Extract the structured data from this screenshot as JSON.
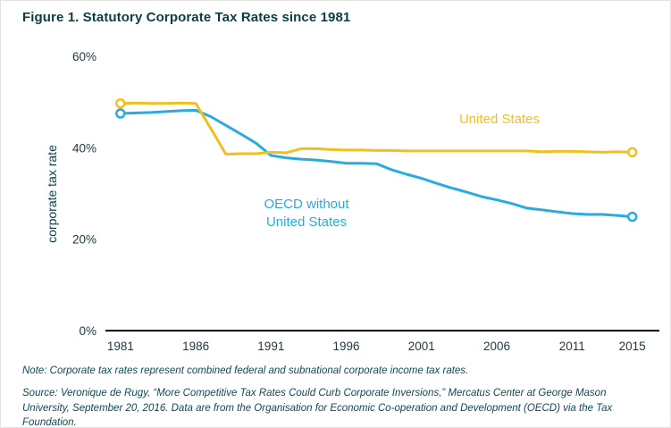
{
  "title": "Figure 1. Statutory Corporate Tax Rates since 1981",
  "note": "Note: Corporate tax rates represent combined federal and subnational corporate income tax rates.",
  "source": "Source: Veronique de Rugy, “More Competitive Tax Rates Could Curb Corporate Inversions,” Mercatus Center at George Mason University, September 20, 2016. Data are from the Organisation for Economic Co-operation and Development (OECD) via the Tax Foundation.",
  "colors": {
    "title_text": "#0B3C4A",
    "axis_text": "#1E3740",
    "axis_line": "#000000",
    "us_line": "#F2C01E",
    "oecd_line": "#29ABE2"
  },
  "chart_data": {
    "type": "line",
    "title": "Figure 1. Statutory Corporate Tax Rates since 1981",
    "xlabel": "",
    "ylabel": "corporate tax rate",
    "ylim": [
      0,
      60
    ],
    "grid": false,
    "legend_position": "inline-annotations",
    "y_ticks": [
      0,
      20,
      40,
      60
    ],
    "y_tick_labels": [
      "0%",
      "20%",
      "40%",
      "60%"
    ],
    "x_ticks": [
      1981,
      1986,
      1991,
      1996,
      2001,
      2006,
      2011,
      2015
    ],
    "years": [
      1981,
      1982,
      1983,
      1984,
      1985,
      1986,
      1987,
      1988,
      1989,
      1990,
      1991,
      1992,
      1993,
      1994,
      1995,
      1996,
      1997,
      1998,
      1999,
      2000,
      2001,
      2002,
      2003,
      2004,
      2005,
      2006,
      2007,
      2008,
      2009,
      2010,
      2011,
      2012,
      2013,
      2014,
      2015
    ],
    "series": [
      {
        "name": "United States",
        "label": "United States",
        "color": "#F2C01E",
        "values": [
          49.7,
          49.8,
          49.7,
          49.7,
          49.8,
          49.7,
          44.2,
          38.6,
          38.7,
          38.7,
          39.0,
          38.9,
          39.8,
          39.8,
          39.6,
          39.5,
          39.5,
          39.4,
          39.4,
          39.3,
          39.3,
          39.3,
          39.3,
          39.3,
          39.3,
          39.3,
          39.3,
          39.3,
          39.1,
          39.2,
          39.2,
          39.1,
          39.0,
          39.1,
          39.0
        ]
      },
      {
        "name": "OECD without United States",
        "label": "OECD without\nUnited States",
        "color": "#29ABE2",
        "values": [
          47.5,
          47.6,
          47.7,
          47.9,
          48.1,
          48.2,
          46.8,
          44.9,
          43.0,
          41.0,
          38.3,
          37.8,
          37.5,
          37.3,
          37.0,
          36.6,
          36.6,
          36.5,
          35.2,
          34.2,
          33.3,
          32.2,
          31.2,
          30.3,
          29.3,
          28.6,
          27.8,
          26.8,
          26.4,
          26.0,
          25.6,
          25.4,
          25.4,
          25.2,
          24.9
        ]
      }
    ]
  }
}
